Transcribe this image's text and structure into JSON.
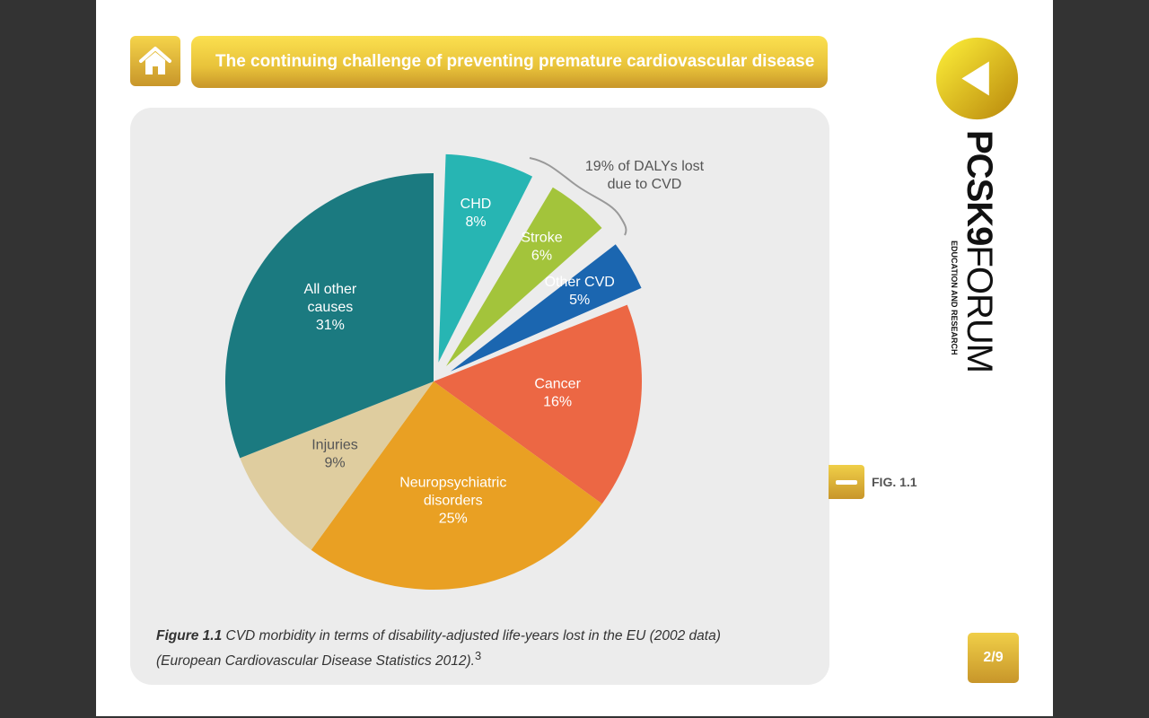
{
  "header": {
    "title": "The continuing challenge of preventing premature cardiovascular disease"
  },
  "brand": {
    "name_bold": "PCSK9",
    "name_light": "FORUM",
    "tagline": "EDUCATION AND RESEARCH"
  },
  "figure": {
    "button_label": "FIG. 1.1",
    "caption_bold": "Figure 1.1",
    "caption_text": " CVD morbidity in terms of disability-adjusted life-years lost in the EU (2002 data)",
    "caption_line2": "(European Cardiovascular Disease Statistics 2012).",
    "caption_sup": "3"
  },
  "pager": {
    "label": "2/9"
  },
  "chart_data": {
    "type": "pie",
    "title": "CVD morbidity in terms of disability-adjusted life-years lost in the EU (2002 data)",
    "annotation": [
      "19% of DALYs lost",
      "due to CVD"
    ],
    "slices": [
      {
        "label": [
          "CHD"
        ],
        "value": 8,
        "pct": "8%",
        "color": "#27b5b3",
        "exploded": true
      },
      {
        "label": [
          "Stroke"
        ],
        "value": 6,
        "pct": "6%",
        "color": "#a3c43b",
        "exploded": true
      },
      {
        "label": [
          "Other CVD"
        ],
        "value": 5,
        "pct": "5%",
        "color": "#1b66b0",
        "exploded": true
      },
      {
        "label": [
          "Cancer"
        ],
        "value": 16,
        "pct": "16%",
        "color": "#ec6744",
        "exploded": false
      },
      {
        "label": [
          "Neuropsychiatric",
          "disorders"
        ],
        "value": 25,
        "pct": "25%",
        "color": "#e9a023",
        "exploded": false
      },
      {
        "label": [
          "Injuries"
        ],
        "value": 9,
        "pct": "9%",
        "color": "#dfcd9f",
        "exploded": false,
        "dark_text": true
      },
      {
        "label": [
          "All other",
          "causes"
        ],
        "value": 31,
        "pct": "31%",
        "color": "#1b7a80",
        "exploded": false
      }
    ]
  }
}
